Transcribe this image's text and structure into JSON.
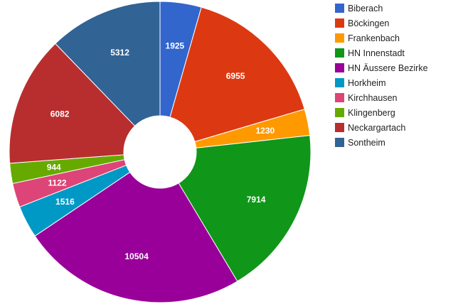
{
  "chart_data": {
    "type": "pie",
    "donut": true,
    "legend": "right",
    "categories": [
      "Biberach",
      "Böckingen",
      "Frankenbach",
      "HN Innenstadt",
      "HN Äussere Bezirke",
      "Horkheim",
      "Kirchhausen",
      "Klingenberg",
      "Neckargartach",
      "Sontheim"
    ],
    "values": [
      1925,
      6955,
      1230,
      7914,
      10504,
      1516,
      1122,
      944,
      6082,
      5312
    ],
    "colors": [
      "#3366cc",
      "#dc3912",
      "#ff9900",
      "#109618",
      "#990099",
      "#0099c6",
      "#dd4477",
      "#66aa00",
      "#b82e2e",
      "#316395"
    ]
  }
}
